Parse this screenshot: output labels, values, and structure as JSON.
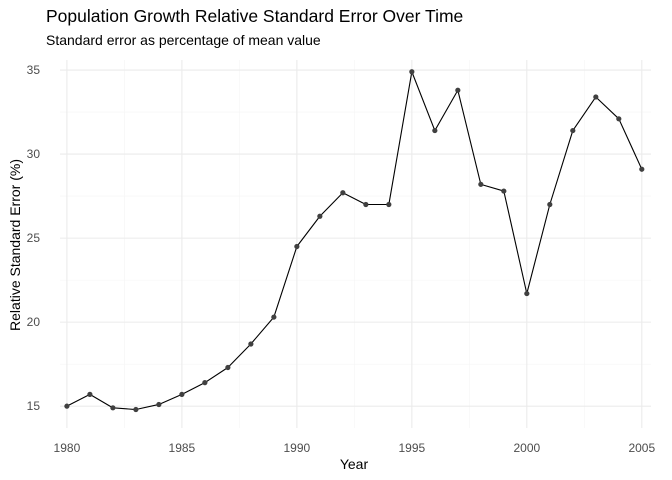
{
  "chart_data": {
    "type": "line",
    "title": "Population Growth Relative Standard Error Over Time",
    "subtitle": "Standard error as percentage of mean value",
    "xlabel": "Year",
    "ylabel": "Relative Standard Error (%)",
    "x": [
      1980,
      1981,
      1982,
      1983,
      1984,
      1985,
      1986,
      1987,
      1988,
      1989,
      1990,
      1991,
      1992,
      1993,
      1994,
      1995,
      1996,
      1997,
      1998,
      1999,
      2000,
      2001,
      2002,
      2003,
      2004,
      2005
    ],
    "y": [
      15.0,
      15.7,
      14.9,
      14.8,
      15.1,
      15.7,
      16.4,
      17.3,
      18.7,
      20.3,
      24.5,
      26.3,
      27.7,
      27.0,
      27.0,
      34.9,
      31.4,
      33.8,
      28.2,
      27.8,
      21.7,
      27.0,
      31.4,
      33.4,
      32.1,
      29.1
    ],
    "xlim": [
      1979.7,
      2005.4
    ],
    "ylim": [
      13.7,
      35.6
    ],
    "x_ticks": [
      1980,
      1985,
      1990,
      1995,
      2000,
      2005
    ],
    "y_ticks": [
      15,
      20,
      25,
      30,
      35
    ],
    "x_minor_ticks": [
      1982.5,
      1987.5,
      1992.5,
      1997.5,
      2002.5
    ],
    "y_minor_ticks": [
      17.5,
      22.5,
      27.5,
      32.5
    ],
    "grid": true,
    "line_color": "#000000",
    "point_color": "#404040",
    "grid_color": "#ebebeb"
  }
}
